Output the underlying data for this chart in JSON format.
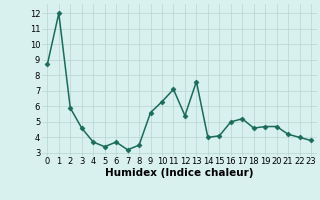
{
  "x": [
    0,
    1,
    2,
    3,
    4,
    5,
    6,
    7,
    8,
    9,
    10,
    11,
    12,
    13,
    14,
    15,
    16,
    17,
    18,
    19,
    20,
    21,
    22,
    23
  ],
  "y": [
    8.7,
    12.0,
    5.9,
    4.6,
    3.7,
    3.4,
    3.7,
    3.2,
    3.5,
    5.6,
    6.3,
    7.1,
    5.4,
    7.6,
    4.0,
    4.1,
    5.0,
    5.2,
    4.6,
    4.7,
    4.7,
    4.2,
    4.0,
    3.8
  ],
  "line_color": "#1a6b5a",
  "marker": "D",
  "marker_size": 2.5,
  "bg_color": "#d8f0ee",
  "grid_color": "#b8d4d0",
  "xlabel": "Humidex (Indice chaleur)",
  "xlim": [
    -0.5,
    23.5
  ],
  "ylim": [
    2.8,
    12.6
  ],
  "yticks": [
    3,
    4,
    5,
    6,
    7,
    8,
    9,
    10,
    11,
    12
  ],
  "xticks": [
    0,
    1,
    2,
    3,
    4,
    5,
    6,
    7,
    8,
    9,
    10,
    11,
    12,
    13,
    14,
    15,
    16,
    17,
    18,
    19,
    20,
    21,
    22,
    23
  ],
  "xlabel_fontsize": 7.5,
  "tick_fontsize": 6.0,
  "line_width": 1.1
}
